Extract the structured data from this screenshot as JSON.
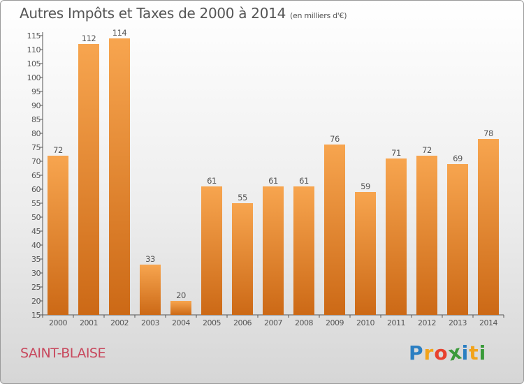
{
  "title": "Autres Impôts et Taxes de 2000 à 2014",
  "title_unit": "(en milliers d'€)",
  "place_name": "SAINT-BLAISE",
  "brand": {
    "letters": [
      "P",
      "r",
      "o",
      "x",
      "i",
      "t",
      "i"
    ],
    "colors": [
      "#2b7fc2",
      "#f2a31a",
      "#e8412e",
      "#3a9a3a",
      "#2b7fc2",
      "#f2a31a",
      "#3a9a3a"
    ]
  },
  "colors": {
    "bar_top": "#f7a54f",
    "bar_bottom": "#cc6916",
    "axis": "#555555",
    "text": "#555555"
  },
  "chart_data": {
    "type": "bar",
    "title": "Autres Impôts et Taxes de 2000 à 2014",
    "categories": [
      "2000",
      "2001",
      "2002",
      "2003",
      "2004",
      "2005",
      "2006",
      "2007",
      "2008",
      "2009",
      "2010",
      "2011",
      "2012",
      "2013",
      "2014"
    ],
    "values": [
      72,
      112,
      114,
      33,
      20,
      61,
      55,
      61,
      61,
      76,
      59,
      71,
      72,
      69,
      78
    ],
    "ylim": [
      15,
      115
    ],
    "yticks": [
      15,
      20,
      25,
      30,
      35,
      40,
      45,
      50,
      55,
      60,
      65,
      70,
      75,
      80,
      85,
      90,
      95,
      100,
      105,
      110,
      115
    ],
    "grid": false,
    "legend": "none",
    "data_labels": true
  }
}
